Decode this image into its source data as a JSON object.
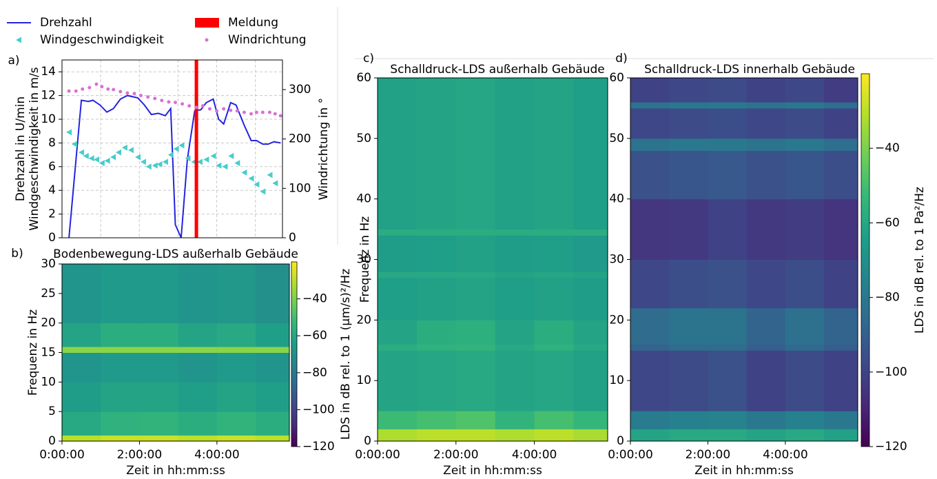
{
  "chart_data": [
    {
      "type": "line",
      "panel": "a)",
      "ylabel": [
        "Drehzahl in U/min",
        "Windgeschwindigkeit in m/s"
      ],
      "y2label": "Windrichtung in °",
      "xlim": [
        0,
        5.7
      ],
      "xticks": [
        0,
        1,
        2,
        3,
        4,
        5
      ],
      "xtick_labels": false,
      "ylim": [
        0,
        15
      ],
      "yticks": [
        0,
        2,
        4,
        6,
        8,
        10,
        12,
        14
      ],
      "y2lim": [
        0,
        360
      ],
      "y2ticks": [
        0,
        100,
        200,
        300
      ],
      "grid": true,
      "legend": "top",
      "legend_columns": 2,
      "series": [
        {
          "name": "Drehzahl",
          "color": "#2323e0",
          "marker": "line",
          "x": [
            0.18,
            0.5,
            0.68,
            0.8,
            0.98,
            1.16,
            1.33,
            1.51,
            1.69,
            1.96,
            2.13,
            2.31,
            2.49,
            2.67,
            2.81,
            2.93,
            3.08,
            3.24,
            3.43,
            3.59,
            3.73,
            3.91,
            4.05,
            4.18,
            4.36,
            4.5,
            4.71,
            4.89,
            5.03,
            5.19,
            5.33,
            5.48,
            5.65
          ],
          "values": [
            0,
            11.6,
            11.5,
            11.6,
            11.2,
            10.6,
            10.9,
            11.7,
            12.0,
            11.8,
            11.2,
            10.4,
            10.5,
            10.3,
            10.9,
            1.1,
            0,
            6.6,
            10.7,
            10.8,
            11.4,
            11.7,
            10.0,
            9.6,
            11.4,
            11.2,
            9.5,
            8.2,
            8.2,
            7.9,
            7.9,
            8.1,
            8.0
          ]
        },
        {
          "name": "Windgeschwindigkeit",
          "color": "#48cccc",
          "marker": "triangle-left",
          "x": [
            0.18,
            0.32,
            0.5,
            0.62,
            0.76,
            0.89,
            1.03,
            1.17,
            1.32,
            1.46,
            1.62,
            1.78,
            1.96,
            2.1,
            2.24,
            2.4,
            2.52,
            2.67,
            2.81,
            2.95,
            3.09,
            3.25,
            3.41,
            3.56,
            3.73,
            3.91,
            4.05,
            4.21,
            4.37,
            4.53,
            4.71,
            4.89,
            5.03,
            5.19,
            5.37,
            5.51
          ],
          "values": [
            8.9,
            7.9,
            7.2,
            6.9,
            6.7,
            6.6,
            6.3,
            6.5,
            6.8,
            7.2,
            7.6,
            7.4,
            6.8,
            6.4,
            6.0,
            6.1,
            6.2,
            6.4,
            7.0,
            7.5,
            7.8,
            6.7,
            6.4,
            6.4,
            6.6,
            6.9,
            6.1,
            6.0,
            6.9,
            6.3,
            5.5,
            5.0,
            4.5,
            3.9,
            5.3,
            4.6
          ]
        },
        {
          "name": "Meldung",
          "color": "#ff0000",
          "marker": "span",
          "x": [
            3.43,
            3.52
          ]
        },
        {
          "name": "Windrichtung",
          "color": "#da70d6",
          "marker": "dot",
          "axis": "y2",
          "x": [
            0.18,
            0.36,
            0.53,
            0.71,
            0.89,
            1.03,
            1.19,
            1.33,
            1.51,
            1.69,
            1.87,
            2.04,
            2.22,
            2.4,
            2.58,
            2.76,
            2.93,
            3.11,
            3.29,
            3.47,
            3.64,
            3.82,
            4.0,
            4.18,
            4.36,
            4.53,
            4.71,
            4.89,
            5.03,
            5.19,
            5.37,
            5.51,
            5.65
          ],
          "values": [
            297,
            297,
            301,
            304,
            311,
            306,
            301,
            300,
            296,
            293,
            292,
            288,
            285,
            282,
            278,
            275,
            274,
            271,
            267,
            264,
            267,
            261,
            257,
            261,
            258,
            257,
            254,
            251,
            254,
            254,
            254,
            251,
            247
          ]
        }
      ]
    },
    {
      "type": "heatmap",
      "panel": "b)",
      "title": "Bodenbewegung-LDS außerhalb Gebäude",
      "xlabel": "Zeit in hh:mm:ss",
      "ylabel": "Frequenz in Hz",
      "colormap": "viridis",
      "xlim": [
        0,
        5.87
      ],
      "xticks": [
        {
          "value": 0,
          "label": "0:00:00"
        },
        {
          "value": 2,
          "label": "2:00:00"
        },
        {
          "value": 4,
          "label": "4:00:00"
        }
      ],
      "ylim": [
        0,
        30
      ],
      "yticks": [
        0,
        5,
        10,
        15,
        20,
        25,
        30
      ],
      "zlim": [
        -120,
        -20
      ],
      "colorbar": true,
      "zlabel": "LDS in dB rel. to 1 (μm/s)²/Hz",
      "zticks": [
        {
          "value": -40,
          "label": "−40"
        },
        {
          "value": -60,
          "label": "−60"
        },
        {
          "value": -80,
          "label": "−80"
        },
        {
          "value": -100,
          "label": "−100"
        },
        {
          "value": -120,
          "label": "−120"
        }
      ],
      "xbins": [
        0,
        1,
        2,
        3,
        4,
        5,
        5.87
      ],
      "ybins": [
        0,
        1,
        5,
        10,
        15,
        16,
        20,
        30
      ],
      "z": [
        [
          -30,
          -28,
          -28,
          -30,
          -28,
          -30
        ],
        [
          -60,
          -56,
          -55,
          -58,
          -55,
          -58
        ],
        [
          -65,
          -62,
          -62,
          -64,
          -62,
          -64
        ],
        [
          -68,
          -66,
          -66,
          -68,
          -66,
          -68
        ],
        [
          -38,
          -38,
          -38,
          -38,
          -38,
          -38
        ],
        [
          -62,
          -58,
          -58,
          -62,
          -60,
          -64
        ],
        [
          -68,
          -66,
          -66,
          -68,
          -67,
          -70
        ]
      ]
    },
    {
      "type": "heatmap",
      "panel": "c)",
      "title": "Schalldruck-LDS außerhalb Gebäude",
      "xlabel": "Zeit in hh:mm:ss",
      "ylabel": "Frequenz in Hz",
      "colormap": "viridis",
      "xlim": [
        0,
        5.87
      ],
      "xticks": [
        {
          "value": 0,
          "label": "0:00:00"
        },
        {
          "value": 2,
          "label": "2:00:00"
        },
        {
          "value": 4,
          "label": "4:00:00"
        }
      ],
      "ylim": [
        0,
        60
      ],
      "yticks": [
        0,
        10,
        20,
        30,
        40,
        50,
        60
      ],
      "zlim": [
        -120,
        -20
      ],
      "colorbar": false,
      "xbins": [
        0,
        1,
        2,
        3,
        4,
        5,
        5.87
      ],
      "ybins": [
        0,
        2,
        5,
        15,
        16,
        20,
        27,
        28,
        34,
        35,
        60
      ],
      "z": [
        [
          -32,
          -30,
          -30,
          -32,
          -30,
          -33
        ],
        [
          -52,
          -50,
          -48,
          -55,
          -50,
          -54
        ],
        [
          -62,
          -61,
          -60,
          -62,
          -61,
          -63
        ],
        [
          -58,
          -56,
          -55,
          -60,
          -56,
          -60
        ],
        [
          -62,
          -58,
          -57,
          -62,
          -58,
          -62
        ],
        [
          -64,
          -63,
          -62,
          -64,
          -63,
          -65
        ],
        [
          -60,
          -60,
          -60,
          -62,
          -61,
          -62
        ],
        [
          -65,
          -64,
          -63,
          -65,
          -64,
          -66
        ],
        [
          -58,
          -58,
          -58,
          -58,
          -58,
          -58
        ],
        [
          -63,
          -62,
          -61,
          -63,
          -62,
          -64
        ]
      ]
    },
    {
      "type": "heatmap",
      "panel": "d)",
      "title": "Schalldruck-LDS innerhalb Gebäude",
      "xlabel": "Zeit in hh:mm:ss",
      "colormap": "viridis",
      "xlim": [
        0,
        5.87
      ],
      "xticks": [
        {
          "value": 0,
          "label": "0:00:00"
        },
        {
          "value": 2,
          "label": "2:00:00"
        },
        {
          "value": 4,
          "label": "4:00:00"
        }
      ],
      "ylim": [
        0,
        60
      ],
      "yticks": [
        0,
        10,
        20,
        30,
        40,
        50,
        60
      ],
      "zlim": [
        -120,
        -20
      ],
      "colorbar": true,
      "zlabel": "LDS in dB rel. to 1 Pa²/Hz",
      "zticks": [
        {
          "value": -40,
          "label": "−40"
        },
        {
          "value": -60,
          "label": "−60"
        },
        {
          "value": -80,
          "label": "−80"
        },
        {
          "value": -100,
          "label": "−100"
        },
        {
          "value": -120,
          "label": "−120"
        }
      ],
      "xbins": [
        0,
        1,
        2,
        3,
        4,
        5,
        5.87
      ],
      "ybins": [
        0,
        2,
        5,
        15,
        16,
        22,
        30,
        40,
        48,
        50,
        55,
        56,
        60
      ],
      "z": [
        [
          -62,
          -60,
          -60,
          -62,
          -60,
          -63
        ],
        [
          -78,
          -76,
          -75,
          -80,
          -76,
          -80
        ],
        [
          -98,
          -97,
          -95,
          -100,
          -97,
          -100
        ],
        [
          -88,
          -85,
          -85,
          -90,
          -86,
          -90
        ],
        [
          -85,
          -82,
          -82,
          -88,
          -83,
          -88
        ],
        [
          -98,
          -96,
          -95,
          -98,
          -96,
          -100
        ],
        [
          -104,
          -103,
          -100,
          -103,
          -102,
          -105
        ],
        [
          -95,
          -93,
          -92,
          -95,
          -93,
          -96
        ],
        [
          -82,
          -80,
          -80,
          -82,
          -80,
          -84
        ],
        [
          -98,
          -97,
          -96,
          -98,
          -97,
          -100
        ],
        [
          -82,
          -80,
          -80,
          -82,
          -80,
          -84
        ],
        [
          -100,
          -98,
          -97,
          -100,
          -98,
          -102
        ]
      ]
    }
  ]
}
